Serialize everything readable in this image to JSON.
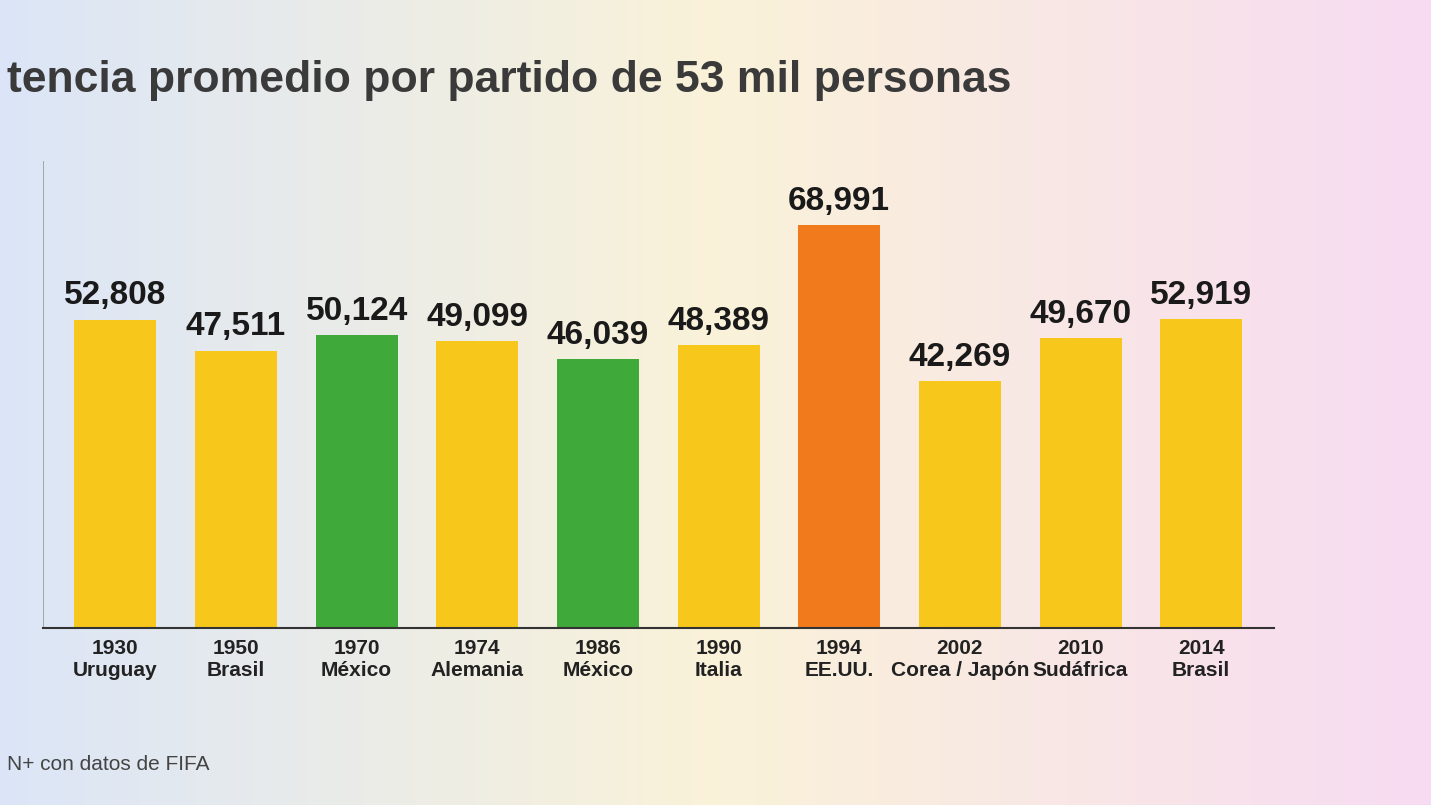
{
  "chart_data": {
    "type": "bar",
    "title": "tencia promedio por partido de 53 mil personas",
    "source": "N+ con datos de FIFA",
    "categories": [
      "1930 Uruguay",
      "1950 Brasil",
      "1970 México",
      "1974 Alemania",
      "1986 México",
      "1990 Italia",
      "1994 EE.UU.",
      "2002 Corea / Japón",
      "2010 Sudáfrica",
      "2014 Brasil"
    ],
    "values": [
      52808,
      47511,
      50124,
      49099,
      46039,
      48389,
      68991,
      42269,
      49670,
      52919
    ],
    "value_labels": [
      "52,808",
      "47,511",
      "50,124",
      "49,099",
      "46,039",
      "48,389",
      "68,991",
      "42,269",
      "49,670",
      "52,919"
    ],
    "colors": [
      "#f7c71c",
      "#f7c71c",
      "#3fa93a",
      "#f7c71c",
      "#3fa93a",
      "#f7c71c",
      "#f07a1c",
      "#f7c71c",
      "#f7c71c",
      "#f7c71c"
    ],
    "data_labels": true,
    "tick_labels": "x",
    "grid": false,
    "ylim": [
      0,
      80000
    ],
    "yticks": []
  }
}
